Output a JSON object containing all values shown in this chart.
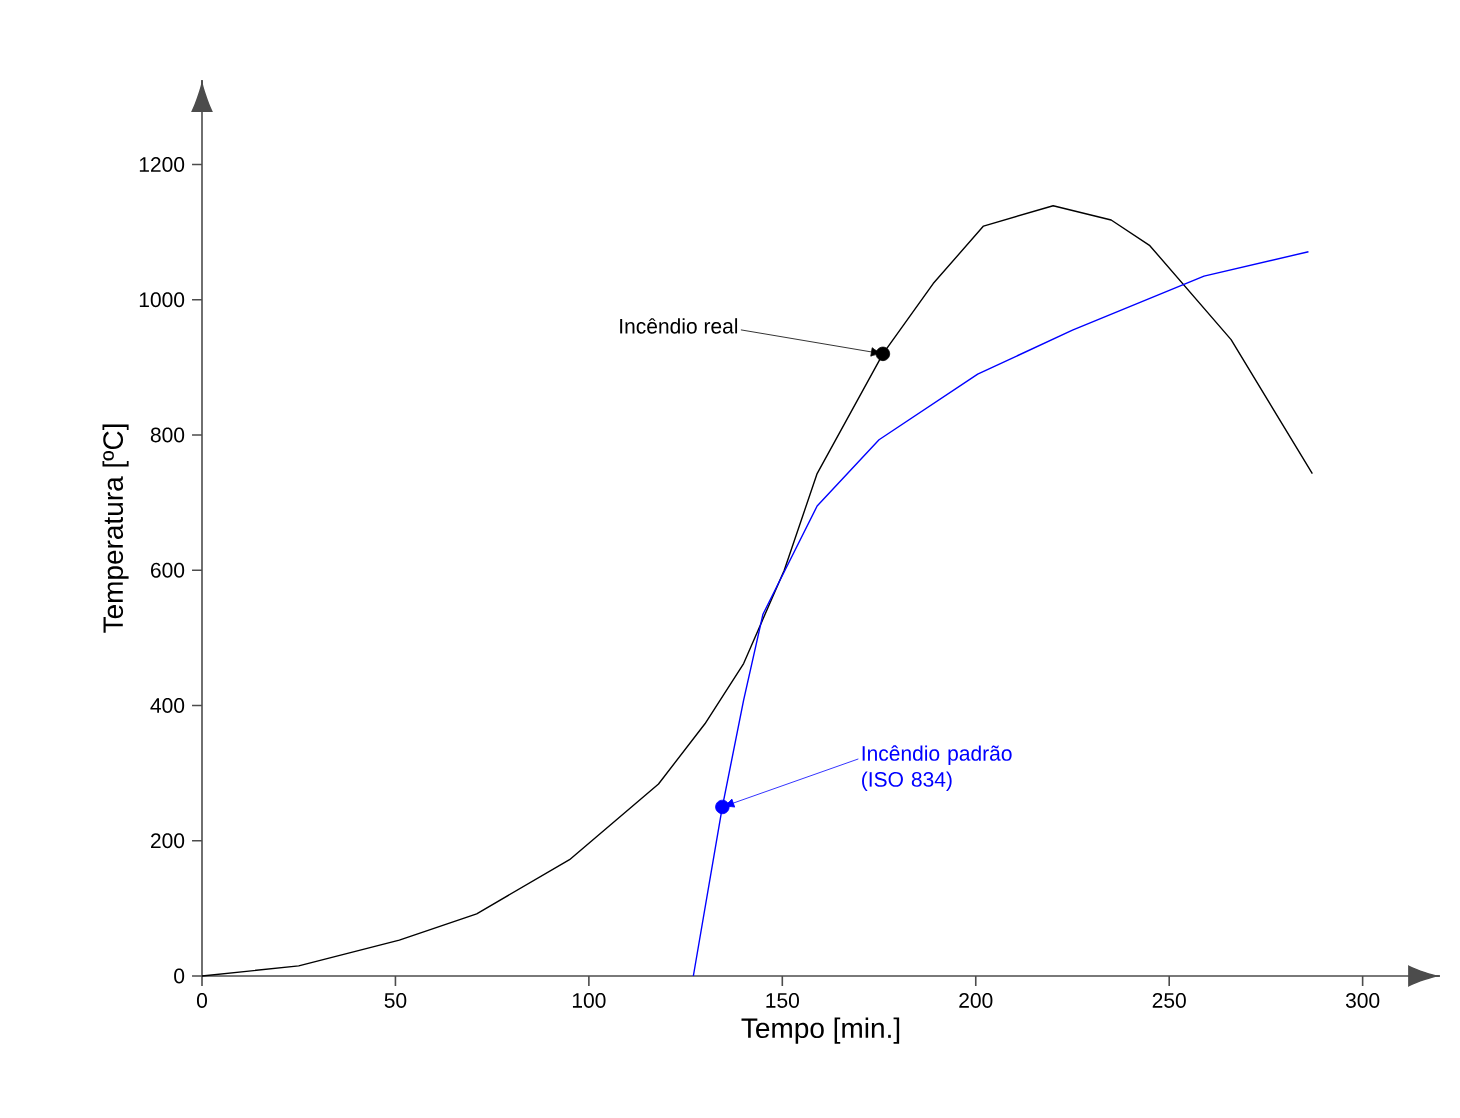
{
  "chart_data": {
    "type": "line",
    "xlabel": "Tempo [min.]",
    "ylabel": "Temperatura [ºC]",
    "xlim": [
      0,
      320
    ],
    "ylim": [
      0,
      1325
    ],
    "xticks": [
      0,
      50,
      100,
      150,
      200,
      250,
      300
    ],
    "yticks": [
      0,
      200,
      400,
      600,
      800,
      1000,
      1200
    ],
    "grid": false,
    "series": [
      {
        "color": "#000000",
        "x": [
          0,
          25,
          51,
          71,
          95,
          118,
          130,
          140,
          150.5,
          159,
          176,
          189,
          202,
          220,
          235,
          245,
          266,
          287
        ],
        "values": [
          0,
          15,
          53,
          92,
          172,
          284,
          373,
          462,
          600,
          743,
          920,
          1024,
          1109,
          1139,
          1118,
          1080,
          941,
          743
        ]
      },
      {
        "color": "#0000ff",
        "x": [
          127,
          134.5,
          140,
          145,
          159,
          175,
          200.5,
          225,
          259,
          286
        ],
        "values": [
          0,
          250,
          408,
          535,
          695,
          793,
          890,
          955,
          1035,
          1071
        ]
      },
      {
        "type": "scatter",
        "marker": "circle",
        "color": "#000000",
        "x": [
          176
        ],
        "values": [
          920
        ]
      },
      {
        "type": "scatter",
        "marker": "circle",
        "color": "#0000ff",
        "x": [
          134.5
        ],
        "values": [
          250
        ]
      }
    ],
    "annotations": [
      {
        "text": "Incêndio real",
        "x": 176,
        "y": 920
      },
      {
        "text": "Incêndio padrão (ISO 834)",
        "x": 134.5,
        "y": 250
      }
    ]
  }
}
